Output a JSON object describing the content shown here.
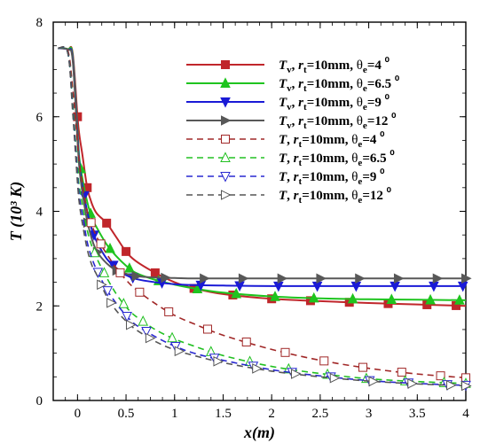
{
  "chart_data": {
    "type": "line",
    "xlabel": "x(m)",
    "ylabel": "T (10³ K)",
    "xlim": [
      -0.25,
      4.0
    ],
    "ylim": [
      0,
      8
    ],
    "xticks": [
      "0",
      "0.5",
      "1",
      "1.5",
      "2",
      "2.5",
      "3",
      "3.5",
      "4"
    ],
    "yticks": [
      "0",
      "2",
      "4",
      "6",
      "8"
    ],
    "grid": false,
    "legend_position": "top-right",
    "series": [
      {
        "name": "Tv, rt=10mm, θe=4⁰",
        "legend_main": "T",
        "legend_sub": "v",
        "legend_theta": "4",
        "color": "#c0262b",
        "dash": false,
        "marker": "square",
        "filled": true,
        "x": [
          -0.2,
          -0.1,
          -0.05,
          0,
          0.02,
          0.05,
          0.1,
          0.15,
          0.2,
          0.3,
          0.4,
          0.5,
          0.6,
          0.8,
          1.0,
          1.2,
          1.5,
          2.0,
          2.5,
          3.0,
          3.5,
          4.0
        ],
        "y": [
          7.45,
          7.43,
          7.35,
          6.0,
          5.6,
          5.2,
          4.5,
          4.15,
          3.95,
          3.75,
          3.45,
          3.15,
          2.95,
          2.7,
          2.5,
          2.37,
          2.25,
          2.15,
          2.1,
          2.06,
          2.03,
          2.0
        ]
      },
      {
        "name": "Tv, rt=10mm, θe=6.5⁰",
        "legend_main": "T",
        "legend_sub": "v",
        "legend_theta": "6.5",
        "color": "#1fc41f",
        "dash": false,
        "marker": "triangle",
        "filled": true,
        "x": [
          -0.2,
          -0.1,
          -0.05,
          0,
          0.02,
          0.05,
          0.1,
          0.15,
          0.2,
          0.3,
          0.4,
          0.5,
          0.6,
          0.8,
          1.0,
          1.2,
          1.5,
          2.0,
          2.5,
          3.0,
          3.5,
          4.0
        ],
        "y": [
          7.45,
          7.43,
          7.3,
          5.7,
          5.1,
          4.7,
          4.2,
          3.85,
          3.65,
          3.3,
          3.05,
          2.85,
          2.7,
          2.55,
          2.45,
          2.37,
          2.28,
          2.2,
          2.16,
          2.14,
          2.13,
          2.12
        ]
      },
      {
        "name": "Tv, rt=10mm, θe=9⁰",
        "legend_main": "T",
        "legend_sub": "v",
        "legend_theta": "9",
        "color": "#1a1ad6",
        "dash": false,
        "marker": "tri-down",
        "filled": true,
        "x": [
          -0.2,
          -0.1,
          -0.05,
          0,
          0.02,
          0.05,
          0.1,
          0.15,
          0.2,
          0.3,
          0.4,
          0.5,
          0.6,
          0.8,
          1.0,
          1.2,
          1.5,
          2.0,
          2.5,
          3.0,
          3.5,
          4.0
        ],
        "y": [
          7.45,
          7.42,
          7.25,
          5.6,
          5.0,
          4.55,
          4.0,
          3.6,
          3.35,
          3.0,
          2.8,
          2.65,
          2.57,
          2.5,
          2.46,
          2.44,
          2.43,
          2.42,
          2.42,
          2.42,
          2.42,
          2.42
        ]
      },
      {
        "name": "Tv, rt=10mm, θe=12⁰",
        "legend_main": "T",
        "legend_sub": "v",
        "legend_theta": "12",
        "color": "#585858",
        "dash": false,
        "marker": "tri-right",
        "filled": true,
        "x": [
          -0.2,
          -0.1,
          -0.05,
          0,
          0.02,
          0.05,
          0.1,
          0.15,
          0.2,
          0.3,
          0.4,
          0.5,
          0.6,
          0.8,
          1.0,
          1.2,
          1.5,
          2.0,
          2.5,
          3.0,
          3.5,
          4.0
        ],
        "y": [
          7.45,
          7.42,
          7.2,
          5.5,
          4.9,
          4.4,
          3.8,
          3.4,
          3.15,
          2.9,
          2.75,
          2.68,
          2.63,
          2.6,
          2.59,
          2.58,
          2.58,
          2.58,
          2.58,
          2.58,
          2.58,
          2.58
        ]
      },
      {
        "name": "T, rt=10mm, θe=4⁰",
        "legend_main": "T",
        "legend_sub": "",
        "legend_theta": "4",
        "color": "#a12828",
        "dash": true,
        "marker": "square",
        "filled": false,
        "x": [
          -0.2,
          -0.1,
          -0.05,
          0,
          0.02,
          0.05,
          0.1,
          0.15,
          0.2,
          0.3,
          0.4,
          0.5,
          0.6,
          0.8,
          1.0,
          1.2,
          1.5,
          2.0,
          2.5,
          3.0,
          3.5,
          4.0
        ],
        "y": [
          7.45,
          7.4,
          6.6,
          5.45,
          5.0,
          4.6,
          4.0,
          3.7,
          3.45,
          3.1,
          2.8,
          2.55,
          2.35,
          2.05,
          1.8,
          1.62,
          1.38,
          1.08,
          0.85,
          0.68,
          0.56,
          0.48
        ]
      },
      {
        "name": "T, rt=10mm, θe=6.5⁰",
        "legend_main": "T",
        "legend_sub": "",
        "legend_theta": "6.5",
        "color": "#22c022",
        "dash": true,
        "marker": "triangle",
        "filled": false,
        "x": [
          -0.2,
          -0.1,
          -0.05,
          0,
          0.02,
          0.05,
          0.1,
          0.15,
          0.2,
          0.3,
          0.4,
          0.5,
          0.6,
          0.8,
          1.0,
          1.2,
          1.5,
          2.0,
          2.5,
          3.0,
          3.5,
          4.0
        ],
        "y": [
          7.45,
          7.35,
          6.3,
          4.9,
          4.5,
          4.15,
          3.6,
          3.25,
          3.0,
          2.6,
          2.25,
          1.98,
          1.78,
          1.5,
          1.3,
          1.15,
          0.95,
          0.72,
          0.57,
          0.46,
          0.4,
          0.36
        ]
      },
      {
        "name": "T, rt=10mm, θe=9⁰",
        "legend_main": "T",
        "legend_sub": "",
        "legend_theta": "9",
        "color": "#2828d0",
        "dash": true,
        "marker": "tri-down",
        "filled": false,
        "x": [
          -0.2,
          -0.1,
          -0.05,
          0,
          0.02,
          0.05,
          0.1,
          0.15,
          0.2,
          0.3,
          0.4,
          0.5,
          0.6,
          0.8,
          1.0,
          1.2,
          1.5,
          2.0,
          2.5,
          3.0,
          3.5,
          4.0
        ],
        "y": [
          7.45,
          7.35,
          6.2,
          4.75,
          4.3,
          3.95,
          3.35,
          3.0,
          2.75,
          2.35,
          2.05,
          1.8,
          1.6,
          1.35,
          1.15,
          1.0,
          0.85,
          0.65,
          0.52,
          0.42,
          0.36,
          0.32
        ]
      },
      {
        "name": "T, rt=10mm, θe=12⁰",
        "legend_main": "T",
        "legend_sub": "",
        "legend_theta": "12",
        "color": "#555555",
        "dash": true,
        "marker": "tri-right",
        "filled": false,
        "x": [
          -0.2,
          -0.1,
          -0.05,
          0,
          0.02,
          0.05,
          0.1,
          0.15,
          0.2,
          0.3,
          0.4,
          0.5,
          0.6,
          0.8,
          1.0,
          1.2,
          1.5,
          2.0,
          2.5,
          3.0,
          3.5,
          4.0
        ],
        "y": [
          7.45,
          7.35,
          6.1,
          4.6,
          4.15,
          3.75,
          3.2,
          2.85,
          2.65,
          2.2,
          1.9,
          1.68,
          1.5,
          1.25,
          1.07,
          0.95,
          0.8,
          0.62,
          0.5,
          0.41,
          0.35,
          0.31
        ]
      }
    ],
    "legend_rt_label": "r",
    "legend_rt_sub": "t",
    "legend_rt_value": "=10mm,",
    "legend_theta_symbol": "θ",
    "legend_theta_sub": "e",
    "legend_theta_unit": "⁰"
  }
}
